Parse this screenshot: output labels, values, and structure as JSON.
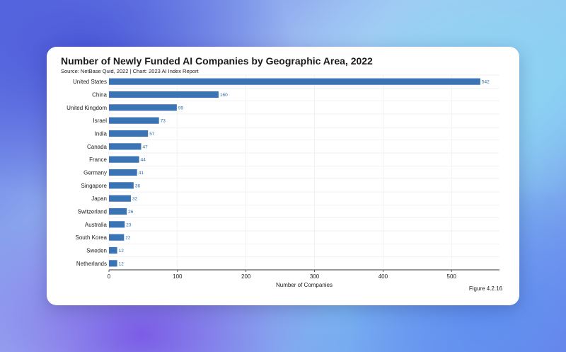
{
  "chart_data": {
    "type": "bar",
    "orientation": "horizontal",
    "title": "Number of Newly Funded AI Companies by Geographic Area, 2022",
    "subtitle": "Source: NetBase Quid, 2022 | Chart: 2023 AI Index Report",
    "figure_label": "Figure 4.2.16",
    "xlabel": "Number of Companies",
    "ylabel": "",
    "xlim": [
      0,
      570
    ],
    "xticks": [
      0,
      100,
      200,
      300,
      400,
      500
    ],
    "grid": true,
    "bar_color": "#3b74b4",
    "label_color": "#2e6aa8",
    "categories": [
      "United States",
      "China",
      "United Kingdom",
      "Israel",
      "India",
      "Canada",
      "France",
      "Germany",
      "Singapore",
      "Japan",
      "Switzerland",
      "Australia",
      "South Korea",
      "Sweden",
      "Netherlands"
    ],
    "values": [
      542,
      160,
      99,
      73,
      57,
      47,
      44,
      41,
      36,
      32,
      26,
      23,
      22,
      12,
      12
    ]
  }
}
